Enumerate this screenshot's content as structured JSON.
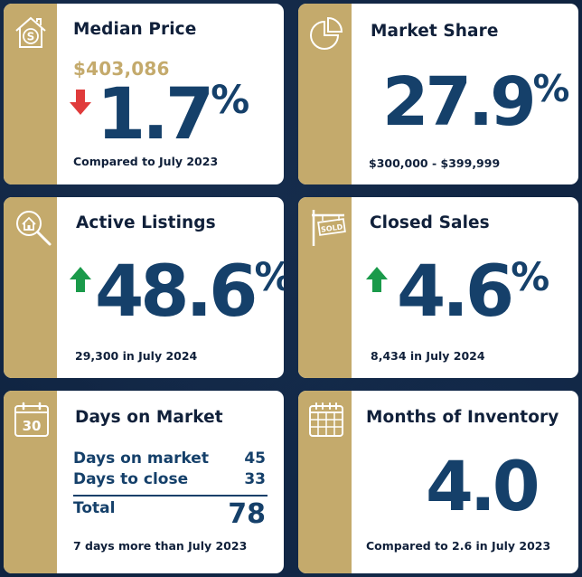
{
  "cards": {
    "median_price": {
      "title": "Median Price",
      "price": "$403,086",
      "change": "1.7",
      "unit": "%",
      "direction": "down",
      "caption": "Compared to July 2023",
      "icon": "house-dollar-icon"
    },
    "market_share": {
      "title": "Market Share",
      "value": "27.9",
      "unit": "%",
      "caption": "$300,000 - $399,999",
      "icon": "pie-chart-icon"
    },
    "active_listings": {
      "title": "Active Listings",
      "change": "48.6",
      "unit": "%",
      "direction": "up",
      "caption": "29,300 in July 2024",
      "icon": "house-search-icon"
    },
    "closed_sales": {
      "title": "Closed Sales",
      "change": "4.6",
      "unit": "%",
      "direction": "up",
      "caption": "8,434 in July 2024",
      "icon": "sold-sign-icon"
    },
    "days_on_market": {
      "title": "Days on Market",
      "rows": [
        {
          "label": "Days on market",
          "value": "45"
        },
        {
          "label": "Days to close",
          "value": "33"
        }
      ],
      "total_label": "Total",
      "total_value": "78",
      "caption": "7 days more than July 2023",
      "icon": "calendar-30-icon",
      "icon_text": "30"
    },
    "months_inventory": {
      "title": "Months of Inventory",
      "value": "4.0",
      "caption": "Compared to 2.6 in July 2023",
      "icon": "calendar-grid-icon"
    }
  },
  "colors": {
    "background": "#0f2340",
    "gold": "#c4aa6c",
    "navy": "#15406a",
    "up": "#1a9a4a",
    "down": "#e03b3b"
  }
}
